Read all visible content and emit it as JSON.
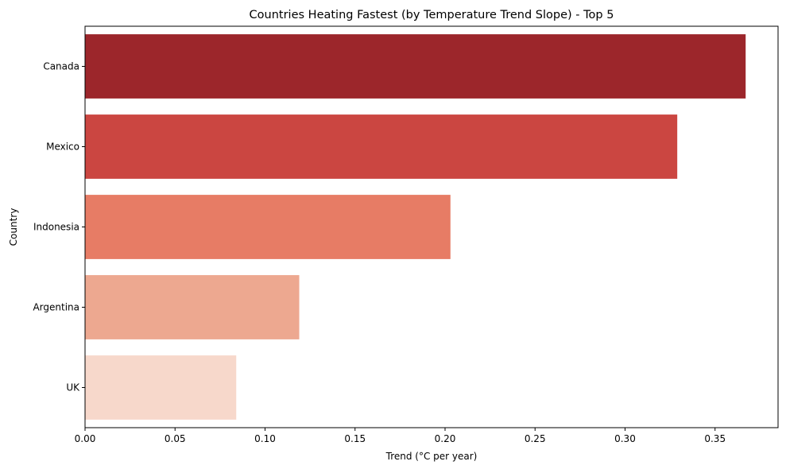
{
  "chart_data": {
    "type": "bar",
    "orientation": "horizontal",
    "title": "Countries Heating Fastest (by Temperature Trend Slope) - Top 5",
    "xlabel": "Trend (°C per year)",
    "ylabel": "Country",
    "categories": [
      "Canada",
      "Mexico",
      "Indonesia",
      "Argentina",
      "UK"
    ],
    "values": [
      0.367,
      0.329,
      0.203,
      0.119,
      0.084
    ],
    "colors": [
      "#9c262b",
      "#cb4641",
      "#e77c65",
      "#eda890",
      "#f7d8cb"
    ],
    "xlim": [
      0,
      0.385
    ],
    "xticks": [
      0.0,
      0.05,
      0.1,
      0.15,
      0.2,
      0.25,
      0.3,
      0.35
    ],
    "xtick_labels": [
      "0.00",
      "0.05",
      "0.10",
      "0.15",
      "0.20",
      "0.25",
      "0.30",
      "0.35"
    ],
    "grid": false,
    "legend": "none"
  }
}
